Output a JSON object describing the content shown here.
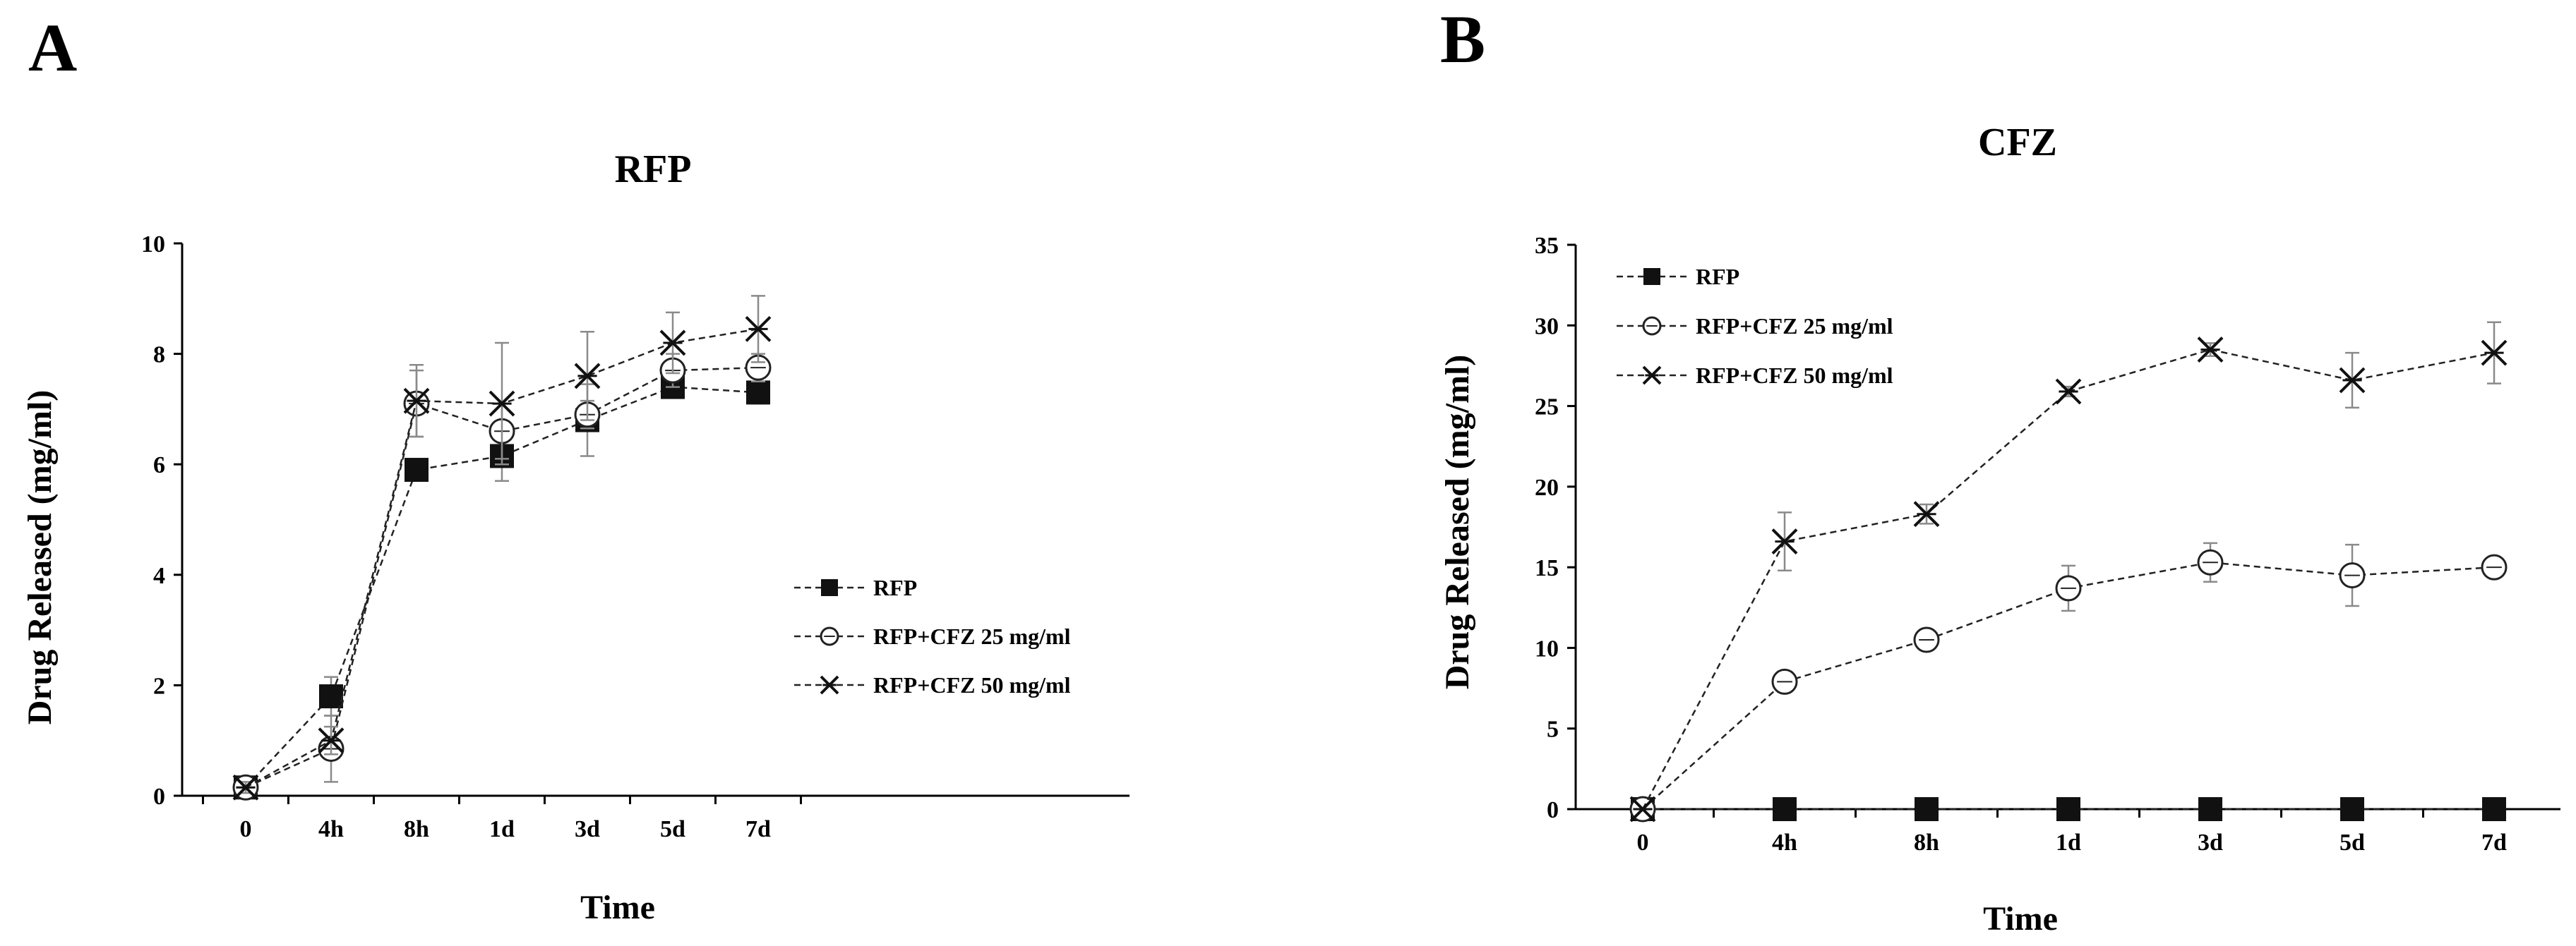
{
  "panels": [
    {
      "label": "A",
      "chart_data": {
        "type": "line",
        "title": "RFP",
        "xlabel": "Time",
        "ylabel": "Drug Released (mg/ml)",
        "categories": [
          "0",
          "4h",
          "8h",
          "1d",
          "3d",
          "5d",
          "7d"
        ],
        "ylim": [
          0,
          10
        ],
        "yticks": [
          0,
          2,
          4,
          6,
          8,
          10
        ],
        "series": [
          {
            "name": "RFP",
            "marker": "square",
            "values": [
              0.15,
              1.8,
              5.9,
              6.15,
              6.8,
              7.4,
              7.3
            ],
            "errors": [
              0.1,
              0.35,
              0.0,
              0.45,
              0.65,
              0.15,
              0.2
            ]
          },
          {
            "name": "RFP+CFZ 25 mg/ml",
            "marker": "circle",
            "values": [
              0.15,
              0.85,
              7.1,
              6.6,
              6.9,
              7.7,
              7.75
            ],
            "errors": [
              0.1,
              0.6,
              0.6,
              0.5,
              0.25,
              0.3,
              0.25
            ]
          },
          {
            "name": "RFP+CFZ 50 mg/ml",
            "marker": "asterisk",
            "values": [
              0.15,
              1.0,
              7.15,
              7.1,
              7.6,
              8.2,
              8.45
            ],
            "errors": [
              0.1,
              0.25,
              0.65,
              1.1,
              0.8,
              0.55,
              0.6
            ]
          }
        ],
        "legend": [
          "RFP",
          "RFP+CFZ 25 mg/ml",
          "RFP+CFZ 50 mg/ml"
        ]
      }
    },
    {
      "label": "B",
      "chart_data": {
        "type": "line",
        "title": "CFZ",
        "xlabel": "Time",
        "ylabel": "Drug Released  (mg/ml)",
        "categories": [
          "0",
          "4h",
          "8h",
          "1d",
          "3d",
          "5d",
          "7d"
        ],
        "ylim": [
          0,
          35
        ],
        "yticks": [
          0,
          5,
          10,
          15,
          20,
          25,
          30,
          35
        ],
        "series": [
          {
            "name": "RFP",
            "marker": "square",
            "values": [
              0,
              0,
              0,
              0,
              0,
              0,
              0
            ],
            "errors": [
              0,
              0,
              0,
              0,
              0,
              0,
              0
            ]
          },
          {
            "name": "RFP+CFZ 25 mg/ml",
            "marker": "circle",
            "values": [
              0,
              7.9,
              10.5,
              13.7,
              15.3,
              14.5,
              15.0
            ],
            "errors": [
              0,
              0.6,
              0.5,
              1.4,
              1.2,
              1.9,
              0.6
            ]
          },
          {
            "name": "RFP+CFZ 50 mg/ml",
            "marker": "asterisk",
            "values": [
              0,
              16.6,
              18.3,
              25.9,
              28.5,
              26.6,
              28.3
            ],
            "errors": [
              0,
              1.8,
              0.6,
              0.3,
              0.4,
              1.7,
              1.9
            ]
          }
        ],
        "legend": [
          "RFP",
          "RFP+CFZ 25 mg/ml",
          "RFP+CFZ 50 mg/ml"
        ]
      }
    }
  ]
}
